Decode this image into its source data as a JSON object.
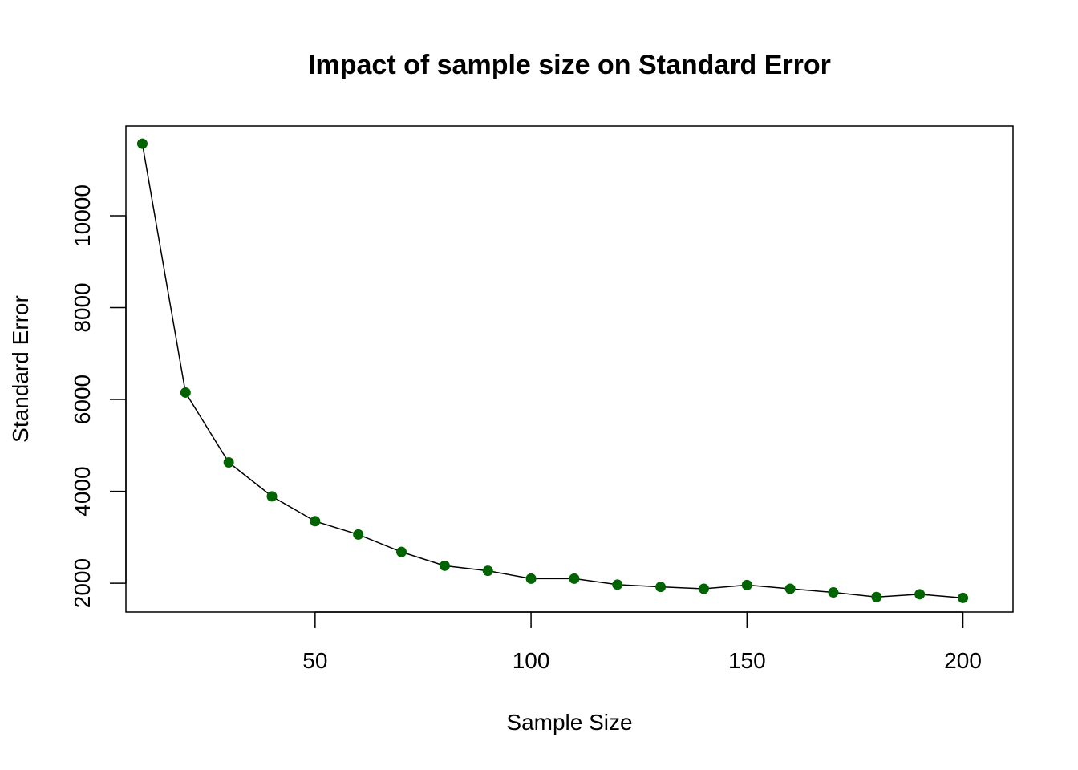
{
  "chart_data": {
    "type": "line",
    "title": "Impact of sample size on Standard Error",
    "xlabel": "Sample Size",
    "ylabel": "Standard Error",
    "xlim": [
      6.2,
      211.6
    ],
    "ylim": [
      1373,
      11956
    ],
    "xticks": [
      50,
      100,
      150,
      200
    ],
    "yticks": [
      2000,
      4000,
      6000,
      8000,
      10000
    ],
    "grid": false,
    "legend": "none",
    "series": [
      {
        "color": "#006400",
        "line_color": "#000000",
        "marker": "filled-circle",
        "x": [
          10,
          20,
          30,
          40,
          50,
          60,
          70,
          80,
          90,
          100,
          110,
          120,
          130,
          140,
          150,
          160,
          170,
          180,
          190,
          200
        ],
        "y": [
          11570,
          6150,
          4630,
          3890,
          3350,
          3060,
          2680,
          2380,
          2270,
          2100,
          2100,
          1970,
          1920,
          1880,
          1960,
          1880,
          1800,
          1700,
          1760,
          1680
        ]
      }
    ]
  }
}
